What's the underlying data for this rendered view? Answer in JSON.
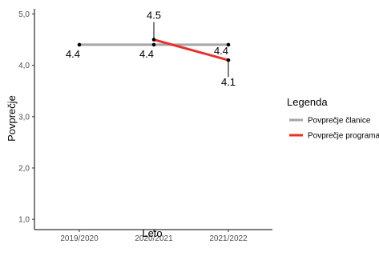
{
  "chart_data": {
    "type": "line",
    "xlabel": "Leto",
    "ylabel": "Povprečje",
    "categories": [
      "2019/2020",
      "2020/2021",
      "2021/2022"
    ],
    "y_ticks": [
      "1,0",
      "2,0",
      "3,0",
      "4,0",
      "5,0"
    ],
    "ylim": [
      0.8,
      5.1
    ],
    "grid": false,
    "legend": {
      "title": "Legenda",
      "position": "right"
    },
    "series": [
      {
        "name": "Povprečje članice",
        "color": "#a6a6a6",
        "values": [
          4.4,
          4.4,
          4.4
        ],
        "labels": [
          "4.4",
          "4.4",
          "4.4"
        ]
      },
      {
        "name": "Povprečje programa",
        "color": "#e8312a",
        "values": [
          null,
          4.5,
          4.1
        ],
        "labels": [
          null,
          "4.5",
          "4.1"
        ]
      }
    ]
  }
}
